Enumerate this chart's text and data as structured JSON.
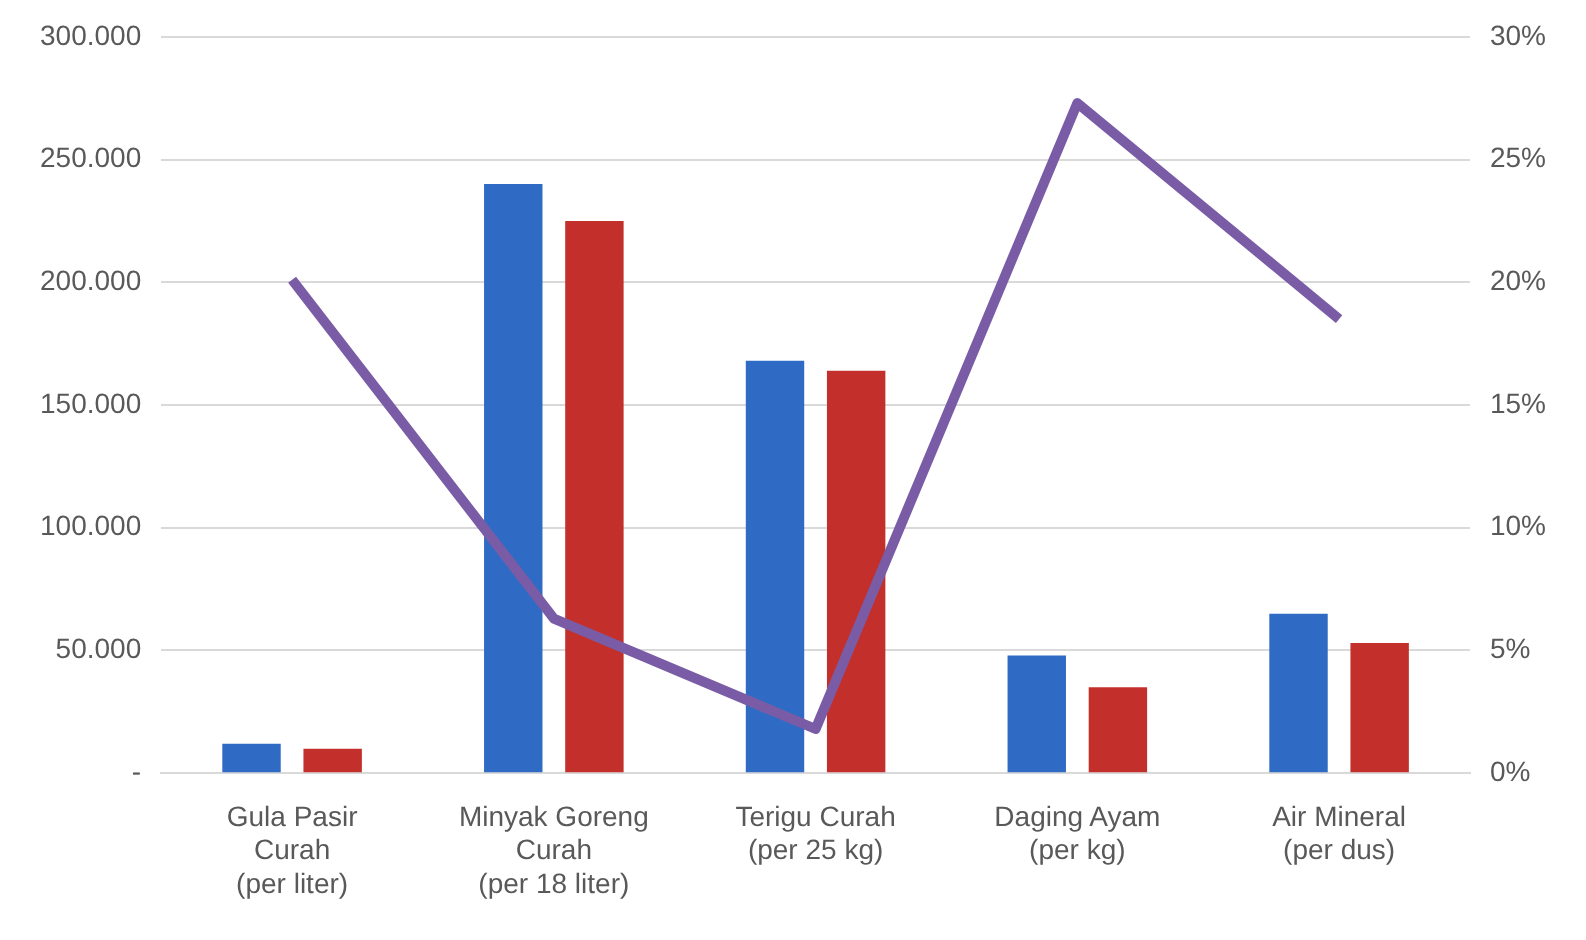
{
  "chart_data": {
    "type": "bar",
    "categories": [
      "Gula Pasir\nCurah\n(per liter)",
      "Minyak Goreng\nCurah\n(per 18 liter)",
      "Terigu Curah\n(per 25 kg)",
      "Daging Ayam\n(per kg)",
      "Air Mineral\n(per dus)"
    ],
    "series": [
      {
        "color": "#2f6bc4",
        "values": [
          12000,
          240000,
          168000,
          48000,
          65000
        ]
      },
      {
        "color": "#c3302c",
        "values": [
          10000,
          225000,
          164000,
          35000,
          53000
        ]
      },
      {
        "type": "line",
        "axis": "y2",
        "color": "#7a5ca6",
        "values": [
          20.1,
          6.3,
          1.8,
          27.3,
          18.5
        ]
      }
    ],
    "ylim": [
      0,
      300000
    ],
    "yticks": [
      {
        "value": 0,
        "label": "-"
      },
      {
        "value": 50000,
        "label": "50.000"
      },
      {
        "value": 100000,
        "label": "100.000"
      },
      {
        "value": 150000,
        "label": "150.000"
      },
      {
        "value": 200000,
        "label": "200.000"
      },
      {
        "value": 250000,
        "label": "250.000"
      },
      {
        "value": 300000,
        "label": "300.000"
      }
    ],
    "y2lim": [
      0,
      30
    ],
    "y2ticks": [
      {
        "value": 0,
        "label": "0%"
      },
      {
        "value": 5,
        "label": "5%"
      },
      {
        "value": 10,
        "label": "10%"
      },
      {
        "value": 15,
        "label": "15%"
      },
      {
        "value": 20,
        "label": "20%"
      },
      {
        "value": 25,
        "label": "25%"
      },
      {
        "value": 30,
        "label": "30%"
      }
    ],
    "grid": "y",
    "legend": false,
    "marker": "none",
    "line_style": "solid"
  }
}
